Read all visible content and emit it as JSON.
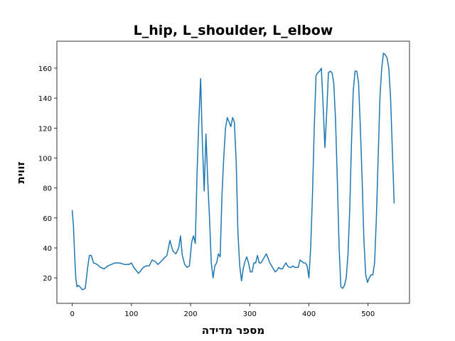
{
  "chart_data": {
    "type": "line",
    "title": "L_hip, L_shoulder, L_elbow",
    "xlabel": "מספר מדידה",
    "ylabel": "זווית",
    "xlim": [
      -26,
      570
    ],
    "ylim": [
      3,
      178
    ],
    "xticks": [
      0,
      100,
      200,
      300,
      400,
      500
    ],
    "yticks": [
      20,
      40,
      60,
      80,
      100,
      120,
      140,
      160
    ],
    "grid": false,
    "color": "#1f77b4",
    "series": [
      {
        "x": [
          0,
          2,
          4,
          6,
          8,
          10,
          13,
          17,
          22,
          26,
          29,
          32,
          36,
          42,
          48,
          54,
          60,
          66,
          72,
          80,
          88,
          96,
          100,
          104,
          108,
          112,
          116,
          120,
          125,
          130,
          135,
          140,
          145,
          150,
          155,
          160,
          165,
          170,
          175,
          180,
          183,
          186,
          190,
          194,
          198,
          202,
          205,
          208,
          211,
          214,
          217,
          220,
          223,
          226,
          229,
          232,
          235,
          238,
          241,
          244,
          247,
          250,
          253,
          256,
          259,
          262,
          265,
          268,
          271,
          274,
          277,
          280,
          283,
          286,
          289,
          292,
          295,
          298,
          301,
          304,
          307,
          310,
          313,
          316,
          319,
          322,
          325,
          328,
          331,
          334,
          337,
          340,
          343,
          346,
          349,
          352,
          355,
          358,
          361,
          364,
          367,
          370,
          373,
          376,
          379,
          382,
          385,
          388,
          391,
          394,
          397,
          400,
          403,
          406,
          409,
          412,
          415,
          418,
          421,
          424,
          427,
          430,
          433,
          436,
          439,
          442,
          445,
          448,
          451,
          454,
          457,
          460,
          463,
          466,
          469,
          472,
          475,
          478,
          481,
          484,
          487,
          490,
          493,
          496,
          499,
          502,
          505,
          508,
          511,
          514,
          517,
          520,
          523,
          526,
          529,
          532,
          535,
          538,
          541,
          544
        ],
        "y": [
          65,
          55,
          35,
          20,
          14,
          15,
          14,
          12,
          13,
          27,
          35,
          35,
          30,
          29,
          27,
          26,
          28,
          29,
          30,
          30,
          29,
          29,
          30,
          27,
          25,
          23,
          25,
          27,
          28,
          28,
          32,
          31,
          29,
          31,
          33,
          35,
          45,
          38,
          36,
          40,
          48,
          35,
          29,
          27,
          28,
          44,
          48,
          43,
          90,
          125,
          153,
          110,
          78,
          116,
          85,
          60,
          30,
          20,
          28,
          30,
          36,
          34,
          75,
          100,
          120,
          127,
          124,
          121,
          127,
          124,
          98,
          50,
          28,
          18,
          26,
          31,
          34,
          30,
          24,
          24,
          30,
          30,
          35,
          30,
          30,
          32,
          34,
          36,
          33,
          30,
          28,
          26,
          24,
          25,
          27,
          26,
          26,
          28,
          30,
          28,
          27,
          27,
          28,
          27,
          27,
          27,
          32,
          31,
          30,
          30,
          28,
          20,
          40,
          75,
          120,
          155,
          157,
          158,
          160,
          135,
          107,
          130,
          157,
          158,
          157,
          150,
          125,
          85,
          40,
          14,
          13,
          15,
          20,
          35,
          65,
          110,
          145,
          158,
          158,
          150,
          120,
          85,
          45,
          22,
          17,
          20,
          22,
          22,
          30,
          60,
          100,
          140,
          160,
          170,
          169,
          167,
          160,
          140,
          105,
          70
        ]
      }
    ]
  }
}
